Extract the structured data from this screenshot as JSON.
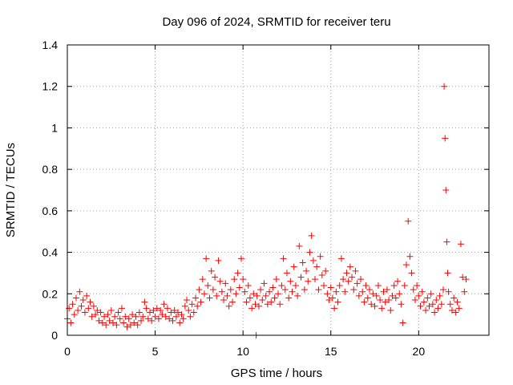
{
  "chart_data": {
    "type": "scatter",
    "title": "Day 096 of 2024, SRMTID for receiver teru",
    "xlabel": "GPS time / hours",
    "ylabel": "SRMTID / TECUs",
    "xlim": [
      0,
      24
    ],
    "ylim": [
      0,
      1.4
    ],
    "xticks": [
      0,
      5,
      10,
      15,
      20
    ],
    "xtick_labels": [
      "0",
      "5",
      "10",
      "15",
      "20"
    ],
    "yticks": [
      0,
      0.2,
      0.4,
      0.6,
      0.8,
      1.0,
      1.2,
      1.4
    ],
    "ytick_labels": [
      "0",
      "0.2",
      "0.4",
      "0.6",
      "0.8",
      "1",
      "1.2",
      "1.4"
    ],
    "grid": true,
    "marker": "+",
    "color": "#ff0000",
    "series": [
      {
        "name": "SRMTID",
        "points": [
          [
            0.0,
            0.08
          ],
          [
            0.1,
            0.13
          ],
          [
            0.2,
            0.06
          ],
          [
            0.3,
            0.15
          ],
          [
            0.4,
            0.1
          ],
          [
            0.5,
            0.18
          ],
          [
            0.6,
            0.12
          ],
          [
            0.7,
            0.21
          ],
          [
            0.8,
            0.14
          ],
          [
            0.9,
            0.17
          ],
          [
            1.0,
            0.11
          ],
          [
            1.1,
            0.19
          ],
          [
            1.2,
            0.13
          ],
          [
            1.3,
            0.16
          ],
          [
            1.4,
            0.09
          ],
          [
            1.5,
            0.14
          ],
          [
            1.6,
            0.1
          ],
          [
            1.7,
            0.12
          ],
          [
            1.8,
            0.07
          ],
          [
            1.9,
            0.11
          ],
          [
            2.0,
            0.06
          ],
          [
            2.1,
            0.09
          ],
          [
            2.2,
            0.05
          ],
          [
            2.3,
            0.1
          ],
          [
            2.4,
            0.07
          ],
          [
            2.5,
            0.12
          ],
          [
            2.6,
            0.06
          ],
          [
            2.7,
            0.09
          ],
          [
            2.8,
            0.05
          ],
          [
            2.9,
            0.11
          ],
          [
            3.0,
            0.08
          ],
          [
            3.1,
            0.13
          ],
          [
            3.2,
            0.06
          ],
          [
            3.3,
            0.09
          ],
          [
            3.4,
            0.04
          ],
          [
            3.5,
            0.08
          ],
          [
            3.6,
            0.05
          ],
          [
            3.7,
            0.1
          ],
          [
            3.8,
            0.06
          ],
          [
            3.9,
            0.09
          ],
          [
            4.0,
            0.05
          ],
          [
            4.1,
            0.11
          ],
          [
            4.2,
            0.07
          ],
          [
            4.3,
            0.09
          ],
          [
            4.4,
            0.16
          ],
          [
            4.5,
            0.13
          ],
          [
            4.6,
            0.08
          ],
          [
            4.7,
            0.11
          ],
          [
            4.8,
            0.07
          ],
          [
            4.9,
            0.12
          ],
          [
            5.0,
            0.09
          ],
          [
            5.1,
            0.13
          ],
          [
            5.2,
            0.08
          ],
          [
            5.3,
            0.12
          ],
          [
            5.4,
            0.1
          ],
          [
            5.5,
            0.15
          ],
          [
            5.6,
            0.09
          ],
          [
            5.7,
            0.13
          ],
          [
            5.8,
            0.08
          ],
          [
            5.9,
            0.11
          ],
          [
            6.0,
            0.07
          ],
          [
            6.1,
            0.12
          ],
          [
            6.2,
            0.09
          ],
          [
            6.3,
            0.11
          ],
          [
            6.4,
            0.06
          ],
          [
            6.5,
            0.1
          ],
          [
            6.6,
            0.08
          ],
          [
            6.7,
            0.14
          ],
          [
            6.8,
            0.17
          ],
          [
            6.9,
            0.12
          ],
          [
            7.0,
            0.09
          ],
          [
            7.1,
            0.15
          ],
          [
            7.2,
            0.11
          ],
          [
            7.3,
            0.18
          ],
          [
            7.4,
            0.14
          ],
          [
            7.5,
            0.22
          ],
          [
            7.6,
            0.16
          ],
          [
            7.7,
            0.27
          ],
          [
            7.8,
            0.2
          ],
          [
            7.9,
            0.37
          ],
          [
            8.0,
            0.24
          ],
          [
            8.1,
            0.18
          ],
          [
            8.2,
            0.31
          ],
          [
            8.3,
            0.22
          ],
          [
            8.4,
            0.28
          ],
          [
            8.5,
            0.19
          ],
          [
            8.6,
            0.36
          ],
          [
            8.7,
            0.26
          ],
          [
            8.8,
            0.21
          ],
          [
            8.9,
            0.17
          ],
          [
            9.0,
            0.25
          ],
          [
            9.1,
            0.19
          ],
          [
            9.2,
            0.14
          ],
          [
            9.3,
            0.22
          ],
          [
            9.4,
            0.16
          ],
          [
            9.5,
            0.27
          ],
          [
            9.6,
            0.2
          ],
          [
            9.7,
            0.3
          ],
          [
            9.8,
            0.23
          ],
          [
            9.9,
            0.37
          ],
          [
            10.0,
            0.27
          ],
          [
            10.1,
            0.21
          ],
          [
            10.2,
            0.16
          ],
          [
            10.3,
            0.24
          ],
          [
            10.4,
            0.18
          ],
          [
            10.5,
            0.13
          ],
          [
            10.6,
            0.2
          ],
          [
            10.7,
            0.15
          ],
          [
            10.75,
            0.0
          ],
          [
            10.8,
            0.19
          ],
          [
            10.9,
            0.14
          ],
          [
            11.0,
            0.22
          ],
          [
            11.1,
            0.17
          ],
          [
            11.2,
            0.25
          ],
          [
            11.3,
            0.19
          ],
          [
            11.4,
            0.15
          ],
          [
            11.5,
            0.21
          ],
          [
            11.6,
            0.16
          ],
          [
            11.7,
            0.23
          ],
          [
            11.8,
            0.18
          ],
          [
            11.9,
            0.27
          ],
          [
            12.0,
            0.2
          ],
          [
            12.1,
            0.15
          ],
          [
            12.2,
            0.24
          ],
          [
            12.3,
            0.37
          ],
          [
            12.4,
            0.22
          ],
          [
            12.5,
            0.3
          ],
          [
            12.6,
            0.18
          ],
          [
            12.7,
            0.26
          ],
          [
            12.8,
            0.21
          ],
          [
            12.9,
            0.33
          ],
          [
            13.0,
            0.24
          ],
          [
            13.1,
            0.19
          ],
          [
            13.2,
            0.43
          ],
          [
            13.3,
            0.28
          ],
          [
            13.4,
            0.35
          ],
          [
            13.5,
            0.22
          ],
          [
            13.6,
            0.31
          ],
          [
            13.7,
            0.26
          ],
          [
            13.8,
            0.4
          ],
          [
            13.9,
            0.48
          ],
          [
            14.0,
            0.36
          ],
          [
            14.1,
            0.27
          ],
          [
            14.2,
            0.33
          ],
          [
            14.3,
            0.22
          ],
          [
            14.4,
            0.38
          ],
          [
            14.5,
            0.29
          ],
          [
            14.6,
            0.24
          ],
          [
            14.7,
            0.31
          ],
          [
            14.8,
            0.2
          ],
          [
            14.9,
            0.17
          ],
          [
            15.0,
            0.23
          ],
          [
            15.1,
            0.18
          ],
          [
            15.2,
            0.13
          ],
          [
            15.3,
            0.21
          ],
          [
            15.4,
            0.16
          ],
          [
            15.5,
            0.24
          ],
          [
            15.6,
            0.37
          ],
          [
            15.7,
            0.27
          ],
          [
            15.8,
            0.21
          ],
          [
            15.9,
            0.3
          ],
          [
            16.0,
            0.26
          ],
          [
            16.1,
            0.33
          ],
          [
            16.2,
            0.28
          ],
          [
            16.3,
            0.22
          ],
          [
            16.4,
            0.31
          ],
          [
            16.5,
            0.25
          ],
          [
            16.6,
            0.19
          ],
          [
            16.7,
            0.27
          ],
          [
            16.8,
            0.21
          ],
          [
            16.9,
            0.16
          ],
          [
            17.0,
            0.24
          ],
          [
            17.1,
            0.18
          ],
          [
            17.2,
            0.22
          ],
          [
            17.3,
            0.15
          ],
          [
            17.4,
            0.2
          ],
          [
            17.5,
            0.14
          ],
          [
            17.6,
            0.19
          ],
          [
            17.7,
            0.24
          ],
          [
            17.8,
            0.17
          ],
          [
            17.9,
            0.13
          ],
          [
            18.0,
            0.21
          ],
          [
            18.1,
            0.16
          ],
          [
            18.2,
            0.22
          ],
          [
            18.3,
            0.17
          ],
          [
            18.4,
            0.12
          ],
          [
            18.5,
            0.19
          ],
          [
            18.6,
            0.24
          ],
          [
            18.7,
            0.18
          ],
          [
            18.8,
            0.26
          ],
          [
            18.9,
            0.2
          ],
          [
            19.0,
            0.15
          ],
          [
            19.1,
            0.06
          ],
          [
            19.2,
            0.24
          ],
          [
            19.3,
            0.34
          ],
          [
            19.4,
            0.55
          ],
          [
            19.5,
            0.38
          ],
          [
            19.6,
            0.3
          ],
          [
            19.7,
            0.22
          ],
          [
            19.8,
            0.17
          ],
          [
            19.9,
            0.24
          ],
          [
            20.0,
            0.19
          ],
          [
            20.1,
            0.14
          ],
          [
            20.2,
            0.21
          ],
          [
            20.3,
            0.16
          ],
          [
            20.4,
            0.12
          ],
          [
            20.5,
            0.18
          ],
          [
            20.6,
            0.14
          ],
          [
            20.7,
            0.2
          ],
          [
            20.8,
            0.15
          ],
          [
            20.9,
            0.11
          ],
          [
            21.0,
            0.17
          ],
          [
            21.1,
            0.13
          ],
          [
            21.2,
            0.19
          ],
          [
            21.3,
            0.15
          ],
          [
            21.4,
            0.22
          ],
          [
            21.45,
            1.2
          ],
          [
            21.5,
            0.95
          ],
          [
            21.55,
            0.7
          ],
          [
            21.6,
            0.45
          ],
          [
            21.65,
            0.3
          ],
          [
            21.7,
            0.21
          ],
          [
            21.8,
            0.15
          ],
          [
            21.9,
            0.12
          ],
          [
            22.0,
            0.18
          ],
          [
            22.1,
            0.11
          ],
          [
            22.2,
            0.16
          ],
          [
            22.3,
            0.13
          ],
          [
            22.4,
            0.44
          ],
          [
            22.5,
            0.28
          ],
          [
            22.6,
            0.21
          ],
          [
            22.7,
            0.27
          ]
        ]
      }
    ]
  }
}
